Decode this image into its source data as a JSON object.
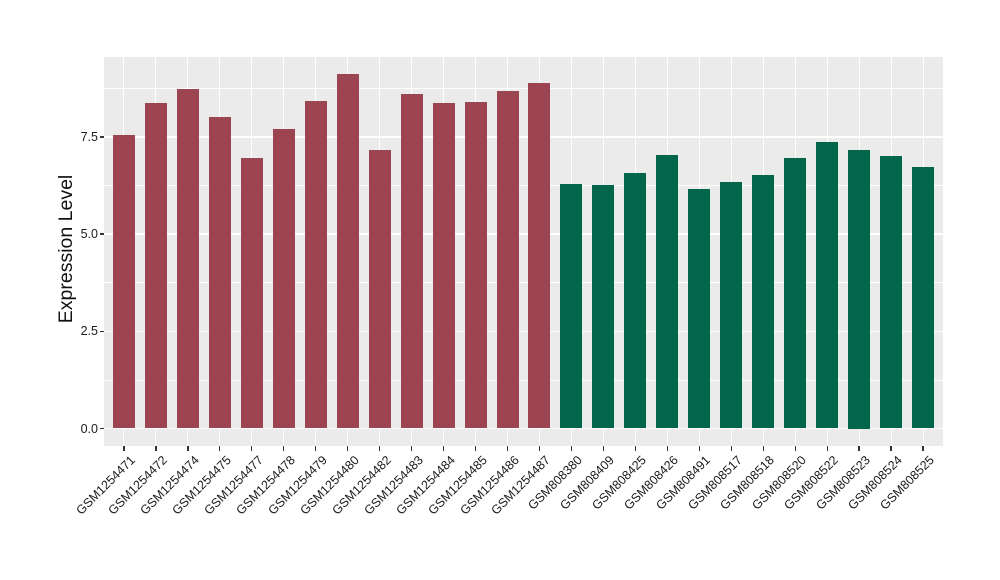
{
  "chart_data": {
    "type": "bar",
    "title": "",
    "xlabel": "",
    "ylabel": "Expression Level",
    "ylim": [
      0,
      9.56
    ],
    "grid": "white major and minor gridlines on grey panel",
    "legend_position": "none",
    "yticks": [
      {
        "value": 0.0,
        "label": "0.0"
      },
      {
        "value": 2.5,
        "label": "2.5"
      },
      {
        "value": 5.0,
        "label": "5.0"
      },
      {
        "value": 7.5,
        "label": "7.5"
      }
    ],
    "minor_yticks": [
      1.25,
      3.75,
      6.25,
      8.75
    ],
    "groups": [
      {
        "name": "group-1",
        "color": "#9C4451"
      },
      {
        "name": "group-2",
        "color": "#01664A"
      }
    ],
    "bars": [
      {
        "label": "GSM1254471",
        "value": 7.56,
        "group": 0
      },
      {
        "label": "GSM1254472",
        "value": 8.38,
        "group": 0
      },
      {
        "label": "GSM1254474",
        "value": 8.73,
        "group": 0
      },
      {
        "label": "GSM1254475",
        "value": 8.02,
        "group": 0
      },
      {
        "label": "GSM1254477",
        "value": 6.96,
        "group": 0
      },
      {
        "label": "GSM1254478",
        "value": 7.7,
        "group": 0
      },
      {
        "label": "GSM1254479",
        "value": 8.44,
        "group": 0
      },
      {
        "label": "GSM1254480",
        "value": 9.13,
        "group": 0
      },
      {
        "label": "GSM1254482",
        "value": 7.16,
        "group": 0
      },
      {
        "label": "GSM1254483",
        "value": 8.6,
        "group": 0
      },
      {
        "label": "GSM1254484",
        "value": 8.38,
        "group": 0
      },
      {
        "label": "GSM1254485",
        "value": 8.39,
        "group": 0
      },
      {
        "label": "GSM1254486",
        "value": 8.69,
        "group": 0
      },
      {
        "label": "GSM1254487",
        "value": 8.88,
        "group": 0
      },
      {
        "label": "GSM808380",
        "value": 6.29,
        "group": 1
      },
      {
        "label": "GSM808409",
        "value": 6.26,
        "group": 1
      },
      {
        "label": "GSM808425",
        "value": 6.58,
        "group": 1
      },
      {
        "label": "GSM808426",
        "value": 7.04,
        "group": 1
      },
      {
        "label": "GSM808491",
        "value": 6.16,
        "group": 1
      },
      {
        "label": "GSM808517",
        "value": 6.35,
        "group": 1
      },
      {
        "label": "GSM808518",
        "value": 6.52,
        "group": 1
      },
      {
        "label": "GSM808520",
        "value": 6.95,
        "group": 1
      },
      {
        "label": "GSM808522",
        "value": 7.36,
        "group": 1
      },
      {
        "label": "GSM808523",
        "value": 7.17,
        "group": 1
      },
      {
        "label": "GSM808524",
        "value": 7.02,
        "group": 1
      },
      {
        "label": "GSM808525",
        "value": 6.74,
        "group": 1
      }
    ]
  },
  "style": {
    "figure_background": "#FFFFFF",
    "panel_background": "#EBEBEB",
    "grid_color": "#FFFFFF",
    "axis_text_color": "#1A1A1A",
    "tick_mark_color": "#333333"
  }
}
